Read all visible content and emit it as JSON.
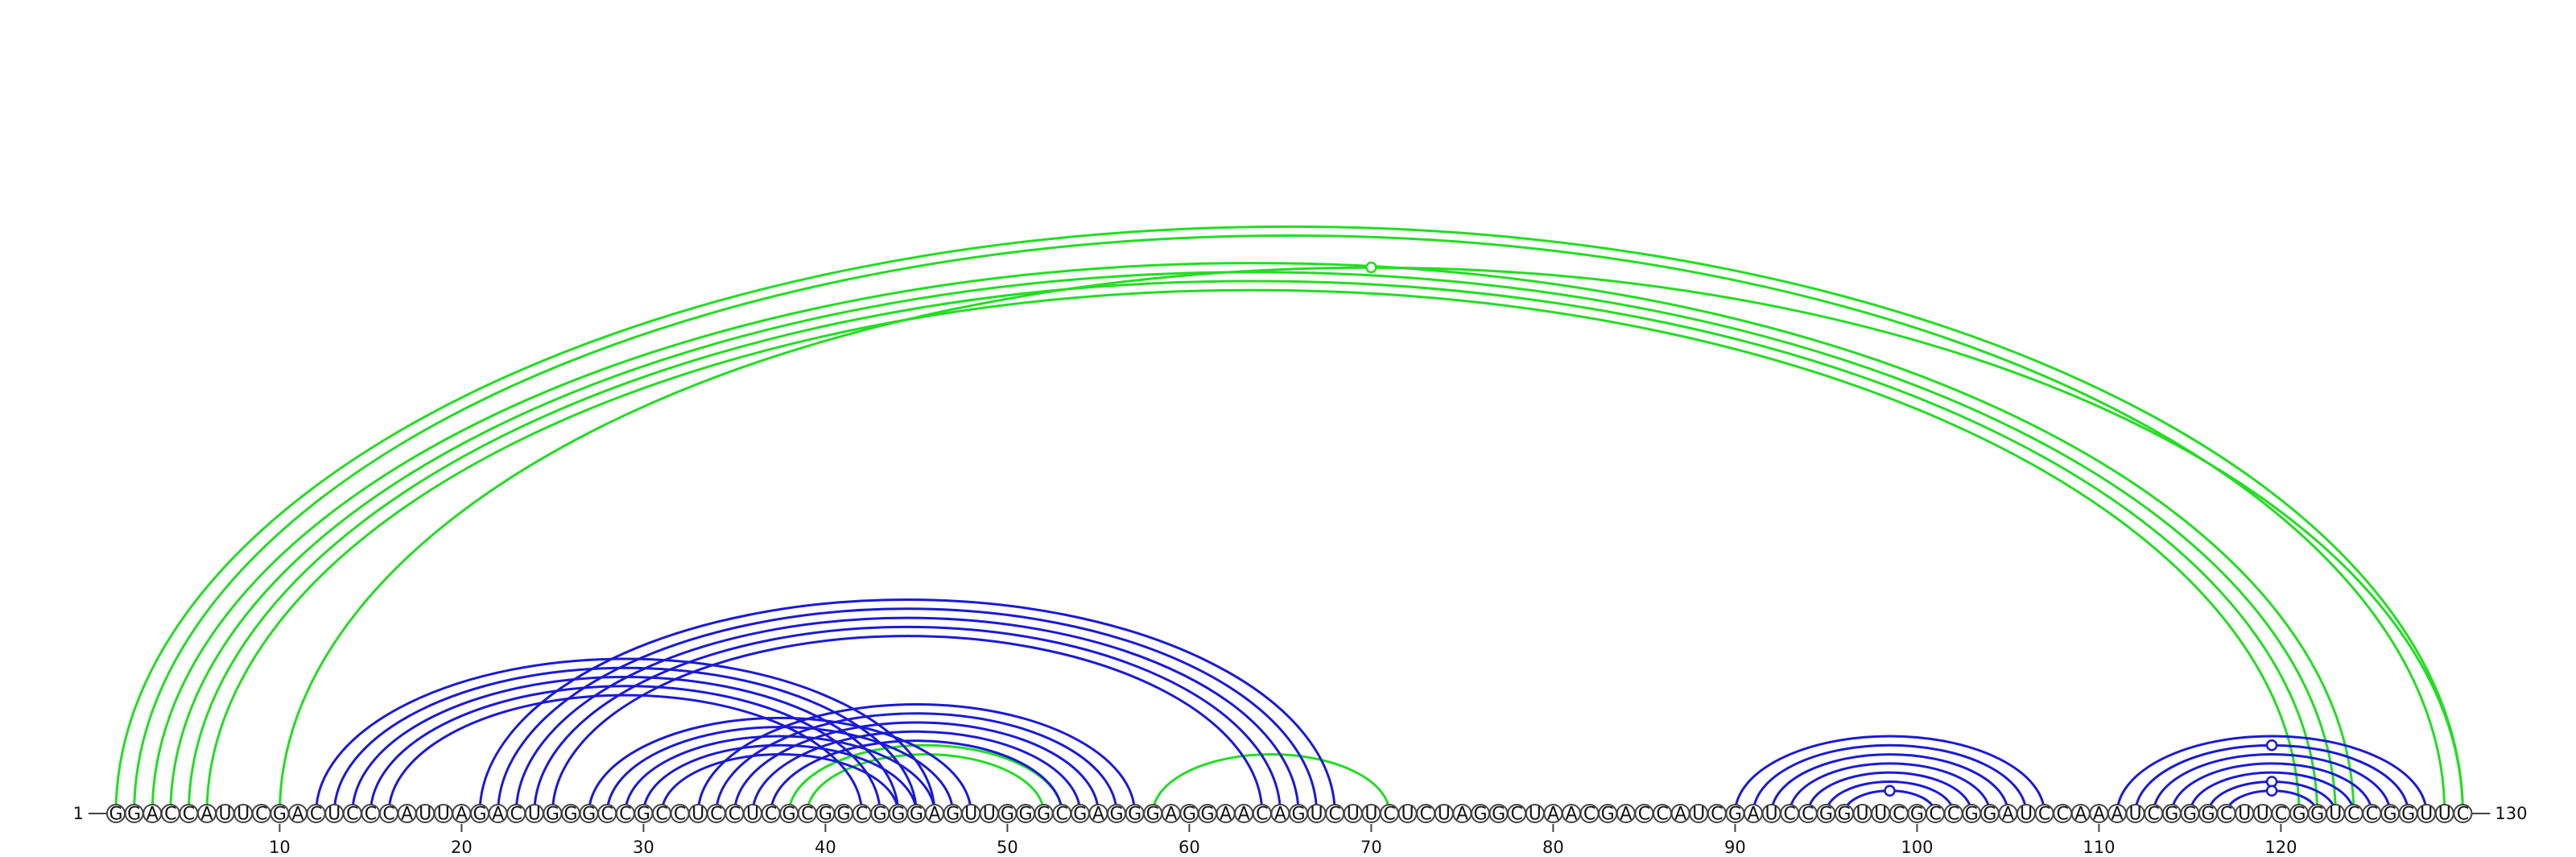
{
  "sequence": "GGACCAUUCGACUCCCAUUAGACUGGGCCGCCUCCUCGCGGCGGGAGUUGGGCGAGGGAGGAACAGUCUUCUCUAGGCUAACGACCAUCGAUCCGGUUCGCCGGAUCCAAAUCGGGCUUCGGUCCGGUUC",
  "start_label": "1",
  "end_label": "130",
  "position_labels": [
    "10",
    "20",
    "30",
    "40",
    "50",
    "60",
    "70",
    "80",
    "90",
    "100",
    "110",
    "120"
  ],
  "colors": {
    "blue": "#1a1ad6",
    "green": "#22dd22"
  },
  "arcs": [
    {
      "i": 1,
      "j": 130,
      "color": "green",
      "marker": false
    },
    {
      "i": 2,
      "j": 129,
      "color": "green",
      "marker": false
    },
    {
      "i": 3,
      "j": 124,
      "color": "green",
      "marker": false
    },
    {
      "i": 4,
      "j": 123,
      "color": "green",
      "marker": false
    },
    {
      "i": 5,
      "j": 122,
      "color": "green",
      "marker": false
    },
    {
      "i": 6,
      "j": 121,
      "color": "green",
      "marker": false
    },
    {
      "i": 10,
      "j": 130,
      "color": "green",
      "marker": true
    },
    {
      "i": 38,
      "j": 53,
      "color": "green",
      "marker": false
    },
    {
      "i": 39,
      "j": 52,
      "color": "green",
      "marker": false
    },
    {
      "i": 58,
      "j": 71,
      "color": "green",
      "marker": false
    },
    {
      "i": 12,
      "j": 46,
      "color": "blue",
      "marker": false
    },
    {
      "i": 13,
      "j": 45,
      "color": "blue",
      "marker": false
    },
    {
      "i": 14,
      "j": 44,
      "color": "blue",
      "marker": false
    },
    {
      "i": 15,
      "j": 43,
      "color": "blue",
      "marker": false
    },
    {
      "i": 16,
      "j": 42,
      "color": "blue",
      "marker": false
    },
    {
      "i": 21,
      "j": 68,
      "color": "blue",
      "marker": false
    },
    {
      "i": 22,
      "j": 67,
      "color": "blue",
      "marker": false
    },
    {
      "i": 23,
      "j": 66,
      "color": "blue",
      "marker": false
    },
    {
      "i": 24,
      "j": 65,
      "color": "blue",
      "marker": false
    },
    {
      "i": 25,
      "j": 64,
      "color": "blue",
      "marker": false
    },
    {
      "i": 27,
      "j": 48,
      "color": "blue",
      "marker": false
    },
    {
      "i": 28,
      "j": 47,
      "color": "blue",
      "marker": false
    },
    {
      "i": 29,
      "j": 46,
      "color": "blue",
      "marker": false
    },
    {
      "i": 30,
      "j": 45,
      "color": "blue",
      "marker": false
    },
    {
      "i": 31,
      "j": 44,
      "color": "blue",
      "marker": false
    },
    {
      "i": 33,
      "j": 57,
      "color": "blue",
      "marker": false
    },
    {
      "i": 34,
      "j": 56,
      "color": "blue",
      "marker": false
    },
    {
      "i": 35,
      "j": 55,
      "color": "blue",
      "marker": false
    },
    {
      "i": 36,
      "j": 54,
      "color": "blue",
      "marker": false
    },
    {
      "i": 37,
      "j": 53,
      "color": "blue",
      "marker": false
    },
    {
      "i": 90,
      "j": 107,
      "color": "blue",
      "marker": false
    },
    {
      "i": 91,
      "j": 106,
      "color": "blue",
      "marker": false
    },
    {
      "i": 92,
      "j": 105,
      "color": "blue",
      "marker": false
    },
    {
      "i": 93,
      "j": 104,
      "color": "blue",
      "marker": false
    },
    {
      "i": 94,
      "j": 103,
      "color": "blue",
      "marker": false
    },
    {
      "i": 95,
      "j": 102,
      "color": "blue",
      "marker": false
    },
    {
      "i": 96,
      "j": 101,
      "color": "blue",
      "marker": true
    },
    {
      "i": 111,
      "j": 128,
      "color": "blue",
      "marker": false
    },
    {
      "i": 112,
      "j": 127,
      "color": "blue",
      "marker": true
    },
    {
      "i": 113,
      "j": 126,
      "color": "blue",
      "marker": false
    },
    {
      "i": 114,
      "j": 125,
      "color": "blue",
      "marker": false
    },
    {
      "i": 115,
      "j": 124,
      "color": "blue",
      "marker": false
    },
    {
      "i": 116,
      "j": 123,
      "color": "blue",
      "marker": true
    },
    {
      "i": 117,
      "j": 122,
      "color": "blue",
      "marker": true
    }
  ]
}
